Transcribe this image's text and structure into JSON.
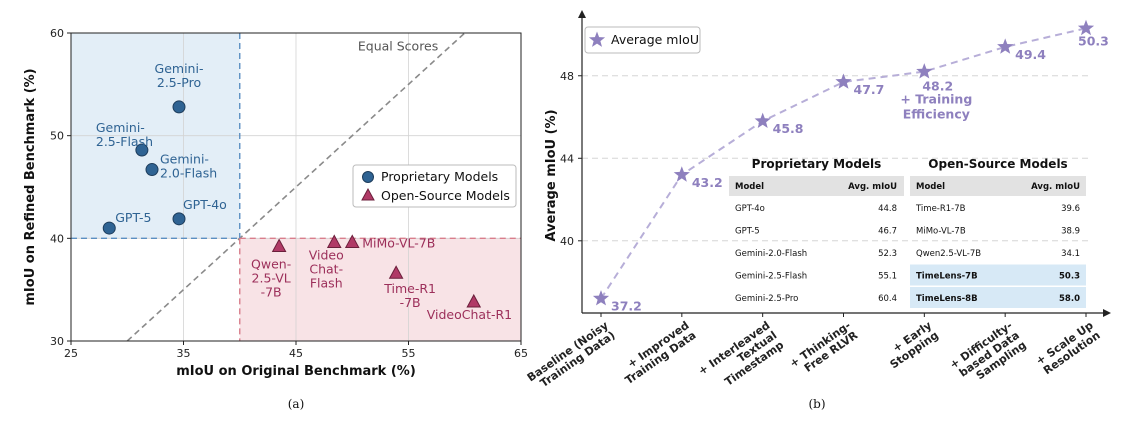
{
  "chart_data": [
    {
      "type": "scatter",
      "caption": "(a)",
      "xlabel": "mIoU on Original Benchmark (%)",
      "ylabel": "mIoU on Refined Benchmark (%)",
      "xlim": [
        25,
        65
      ],
      "ylim": [
        30,
        60
      ],
      "xticks": [
        "25",
        "35",
        "45",
        "55",
        "65"
      ],
      "yticks": [
        "30",
        "40",
        "50",
        "60"
      ],
      "grid": true,
      "diagonal_label": "Equal Scores",
      "legend_position": "center-right",
      "series": [
        {
          "name": "Proprietary Models",
          "marker": "circle",
          "color": "#2f6393",
          "points": [
            {
              "label": "Gemini-\n2.5-Pro",
              "x": 34.6,
              "y": 52.8
            },
            {
              "label": "Gemini-\n2.5-Flash",
              "x": 31.3,
              "y": 48.6
            },
            {
              "label": "Gemini-\n2.0-Flash",
              "x": 32.2,
              "y": 46.7
            },
            {
              "label": "GPT-4o",
              "x": 34.6,
              "y": 41.9
            },
            {
              "label": "GPT-5",
              "x": 28.4,
              "y": 41.0
            }
          ]
        },
        {
          "name": "Open-Source Models",
          "marker": "triangle",
          "color": "#b03a66",
          "points": [
            {
              "label": "Qwen-\n2.5-VL\n-7B",
              "x": 43.5,
              "y": 39.2
            },
            {
              "label": "Video\nChat-\nFlash",
              "x": 48.4,
              "y": 39.6
            },
            {
              "label": "MiMo-VL-7B",
              "x": 50.0,
              "y": 39.6
            },
            {
              "label": "Time-R1\n-7B",
              "x": 53.9,
              "y": 36.6
            },
            {
              "label": "VideoChat-R1",
              "x": 60.8,
              "y": 33.8
            }
          ]
        }
      ]
    },
    {
      "type": "line",
      "caption": "(b)",
      "ylabel": "Average mIoU (%)",
      "ylim": [
        36.5,
        50.8
      ],
      "yticks": [
        "40",
        "44",
        "48"
      ],
      "legend": "Average mIoU",
      "color": "#8e80be",
      "categories": [
        "Baseline (Noisy\nTraining Data)",
        "+ Improved\nTraining Data",
        "+ Interleaved\nTextual\nTimestamp",
        "+ Thinking-\nFree RLVR",
        "+ Early\nStopping",
        "+ Difficulty-\nbased Data\nSampling",
        "+ Scale Up\nResolution"
      ],
      "values": [
        37.2,
        43.2,
        45.8,
        47.7,
        48.2,
        49.4,
        50.3
      ],
      "value_labels": [
        "37.2",
        "43.2",
        "45.8",
        "47.7",
        "48.2",
        "49.4",
        "50.3"
      ],
      "annotation": "+ Training\nEfficiency",
      "tables": [
        {
          "title": "Proprietary Models",
          "headers": [
            "Model",
            "Avg. mIoU"
          ],
          "rows": [
            [
              "GPT-4o",
              "44.8"
            ],
            [
              "GPT-5",
              "46.7"
            ],
            [
              "Gemini-2.0-Flash",
              "52.3"
            ],
            [
              "Gemini-2.5-Flash",
              "55.1"
            ],
            [
              "Gemini-2.5-Pro",
              "60.4"
            ]
          ]
        },
        {
          "title": "Open-Source Models",
          "headers": [
            "Model",
            "Avg. mIoU"
          ],
          "rows": [
            [
              "Time-R1-7B",
              "39.6"
            ],
            [
              "MiMo-VL-7B",
              "38.9"
            ],
            [
              "Qwen2.5-VL-7B",
              "34.1"
            ],
            [
              "TimeLens-7B",
              "50.3"
            ],
            [
              "TimeLens-8B",
              "58.0"
            ]
          ],
          "highlight_rows": [
            3,
            4
          ],
          "highlight_color": "#d7e9f6"
        }
      ]
    }
  ]
}
